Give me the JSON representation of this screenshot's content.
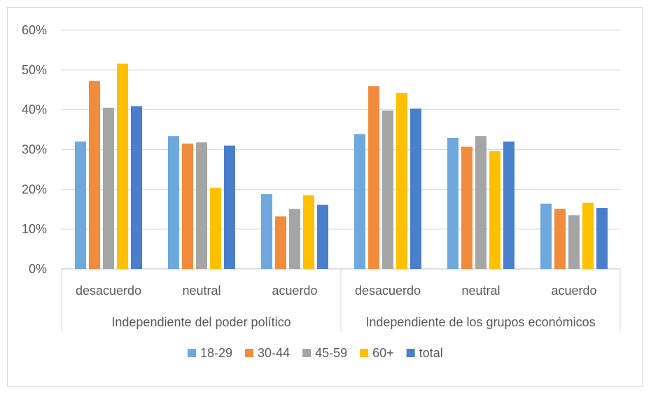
{
  "chart_data": {
    "type": "bar",
    "groups": [
      {
        "label": "Independiente del poder político",
        "categories": [
          "desacuerdo",
          "neutral",
          "acuerdo"
        ]
      },
      {
        "label": "Independiente de  los grupos económicos",
        "categories": [
          "desacuerdo",
          "neutral",
          "acuerdo"
        ]
      }
    ],
    "series": [
      {
        "name": "18-29",
        "color": "#6fa8dc",
        "values": [
          0.32,
          0.334,
          0.188,
          0.339,
          0.329,
          0.164
        ]
      },
      {
        "name": "30-44",
        "color": "#f08c3c",
        "values": [
          0.472,
          0.315,
          0.132,
          0.459,
          0.307,
          0.151
        ]
      },
      {
        "name": "45-59",
        "color": "#a5a5a5",
        "values": [
          0.405,
          0.318,
          0.151,
          0.398,
          0.334,
          0.135
        ]
      },
      {
        "name": "60+",
        "color": "#ffc000",
        "values": [
          0.516,
          0.204,
          0.185,
          0.442,
          0.296,
          0.166
        ]
      },
      {
        "name": "total",
        "color": "#4a7fcc",
        "values": [
          0.409,
          0.31,
          0.161,
          0.403,
          0.32,
          0.153
        ]
      }
    ],
    "y_axis": {
      "min": 0,
      "max": 0.6,
      "ticks": [
        0,
        0.1,
        0.2,
        0.3,
        0.4,
        0.5,
        0.6
      ],
      "tick_labels": [
        "0%",
        "10%",
        "20%",
        "30%",
        "40%",
        "50%",
        "60%"
      ]
    },
    "grid": true,
    "legend_position": "bottom",
    "title": ""
  }
}
